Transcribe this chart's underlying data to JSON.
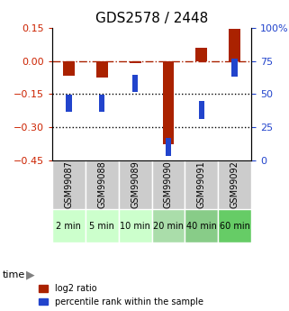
{
  "title": "GDS2578 / 2448",
  "samples": [
    "GSM99087",
    "GSM99088",
    "GSM99089",
    "GSM99090",
    "GSM99091",
    "GSM99092"
  ],
  "time_labels": [
    "2 min",
    "5 min",
    "10 min",
    "20 min",
    "40 min",
    "60 min"
  ],
  "log2_ratio": [
    -0.065,
    -0.075,
    -0.01,
    -0.38,
    0.06,
    0.148
  ],
  "percentile_rank": [
    43,
    43,
    58,
    10,
    38,
    70
  ],
  "ylim_left": [
    -0.45,
    0.15
  ],
  "ylim_right": [
    0,
    100
  ],
  "left_yticks": [
    0.15,
    0,
    -0.15,
    -0.3,
    -0.45
  ],
  "right_yticks": [
    100,
    75,
    50,
    25,
    0
  ],
  "hline_y": 0,
  "dotted_lines": [
    -0.15,
    -0.3
  ],
  "bar_color": "#aa2200",
  "dot_color": "#2244cc",
  "cell_bg_gray": "#cccccc",
  "cell_bg_green_light": "#ccffcc",
  "cell_bg_green_mid": "#99ee99",
  "cell_bg_green_dark": "#66dd66",
  "time_row_colors": [
    "#ccffcc",
    "#ccffcc",
    "#ccffcc",
    "#aaddaa",
    "#88cc88",
    "#66cc66"
  ],
  "legend_bar_label": "log2 ratio",
  "legend_dot_label": "percentile rank within the sample",
  "xlabel_left": "",
  "left_tick_color": "#cc2200",
  "right_tick_color": "#2244cc",
  "title_fontsize": 11,
  "tick_fontsize": 8,
  "sample_fontsize": 7,
  "time_fontsize": 8
}
